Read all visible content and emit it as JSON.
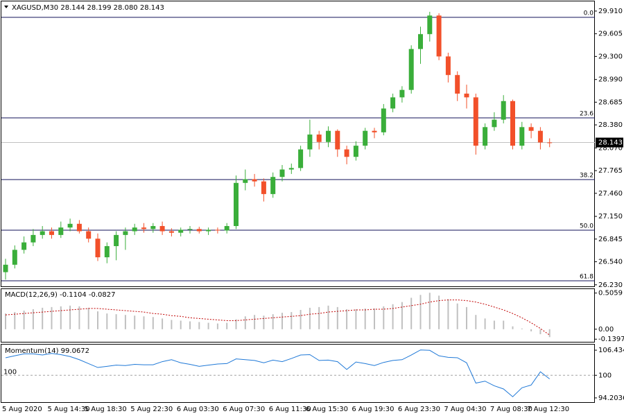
{
  "chart_data": [
    {
      "type": "candlestick",
      "title": "XAGUSD,M30  28.144 28.199 28.080 28.143",
      "categories": [
        "5 Aug 2020",
        null,
        null,
        null,
        null,
        "5 Aug 14:30",
        null,
        null,
        null,
        "5 Aug 18:30",
        null,
        null,
        null,
        null,
        "5 Aug 22:30",
        null,
        null,
        null,
        null,
        "6 Aug 03:30",
        null,
        null,
        null,
        null,
        "6 Aug 07:30",
        null,
        null,
        null,
        null,
        "6 Aug 11:30",
        null,
        null,
        null,
        "6 Aug 15:30",
        null,
        null,
        null,
        null,
        "6 Aug 19:30",
        null,
        null,
        null,
        null,
        "6 Aug 23:30",
        null,
        null,
        null,
        null,
        "7 Aug 04:30",
        null,
        null,
        null,
        null,
        "7 Aug 08:30",
        null,
        null,
        null,
        "7 Aug 12:30",
        null,
        null
      ],
      "open": [
        26.4,
        26.5,
        26.7,
        26.8,
        26.9,
        26.95,
        26.9,
        27.0,
        27.05,
        26.95,
        26.85,
        26.6,
        26.75,
        26.9,
        26.95,
        27.0,
        26.98,
        27.02,
        26.95,
        26.93,
        26.97,
        26.98,
        26.95,
        26.97,
        26.96,
        27.02,
        27.6,
        27.65,
        27.62,
        27.45,
        27.68,
        27.78,
        27.8,
        28.05,
        28.25,
        28.15,
        28.3,
        28.05,
        27.95,
        28.1,
        28.3,
        28.28,
        28.6,
        28.75,
        28.85,
        29.4,
        29.6,
        29.85,
        29.3,
        29.05,
        28.8,
        28.75,
        28.1,
        28.35,
        28.45,
        28.7,
        28.1,
        28.35,
        28.3,
        28.144
      ],
      "high": [
        26.58,
        26.76,
        26.88,
        26.98,
        27.02,
        27.0,
        27.08,
        27.12,
        27.1,
        27.0,
        26.92,
        26.8,
        26.95,
        27.0,
        27.05,
        27.06,
        27.06,
        27.08,
        26.99,
        27.0,
        27.02,
        27.01,
        27.0,
        27.0,
        27.06,
        27.7,
        27.78,
        27.72,
        27.66,
        27.74,
        27.84,
        27.86,
        28.1,
        28.45,
        28.3,
        28.36,
        28.32,
        28.1,
        28.16,
        28.34,
        28.34,
        28.66,
        28.8,
        28.9,
        29.45,
        29.7,
        29.9,
        29.88,
        29.35,
        29.1,
        28.92,
        28.8,
        28.4,
        28.55,
        28.78,
        28.72,
        28.42,
        28.4,
        28.35,
        28.199
      ],
      "low": [
        26.3,
        26.45,
        26.65,
        26.75,
        26.85,
        26.85,
        26.86,
        26.95,
        26.92,
        26.8,
        26.55,
        26.52,
        26.56,
        26.7,
        26.9,
        26.93,
        26.93,
        26.9,
        26.88,
        26.88,
        26.92,
        26.92,
        26.9,
        26.92,
        26.92,
        26.98,
        27.5,
        27.55,
        27.35,
        27.4,
        27.62,
        27.72,
        27.76,
        27.95,
        28.05,
        28.08,
        27.95,
        27.85,
        27.9,
        28.05,
        28.2,
        28.24,
        28.55,
        28.68,
        28.8,
        29.2,
        29.5,
        29.25,
        28.95,
        28.7,
        28.6,
        27.98,
        28.05,
        28.3,
        28.4,
        28.05,
        28.05,
        28.2,
        28.05,
        28.08
      ],
      "close": [
        26.5,
        26.7,
        26.8,
        26.9,
        26.95,
        26.9,
        27.0,
        27.05,
        26.95,
        26.85,
        26.6,
        26.75,
        26.9,
        26.95,
        27.0,
        26.98,
        27.02,
        26.95,
        26.93,
        26.97,
        26.98,
        26.95,
        26.97,
        26.96,
        27.02,
        27.6,
        27.65,
        27.62,
        27.45,
        27.68,
        27.78,
        27.8,
        28.05,
        28.25,
        28.15,
        28.3,
        28.05,
        27.95,
        28.1,
        28.3,
        28.28,
        28.6,
        28.75,
        28.85,
        29.4,
        29.6,
        29.85,
        29.3,
        29.05,
        28.8,
        28.75,
        28.1,
        28.35,
        28.45,
        28.7,
        28.1,
        28.35,
        28.3,
        28.144,
        28.143
      ],
      "up_color": "#3aae3a",
      "down_color": "#f2502a",
      "ylim": [
        26.2,
        30.04
      ],
      "yticks": [
        {
          "value": 29.91,
          "label": "29.910"
        },
        29.605,
        {
          "value": 29.3,
          "label": "29.300"
        },
        {
          "value": 28.99,
          "label": "28.990"
        },
        28.685,
        {
          "value": 28.38,
          "label": "28.380"
        },
        {
          "value": 28.07,
          "label": "28.070"
        },
        27.765,
        {
          "value": 27.46,
          "label": "27.460"
        },
        {
          "value": 27.15,
          "label": "27.150"
        },
        26.845,
        {
          "value": 26.54,
          "label": "26.540"
        },
        {
          "value": 26.23,
          "label": "26.230"
        }
      ],
      "fibo": [
        {
          "label": "0.0",
          "price": 29.826
        },
        {
          "label": "23.6",
          "price": 28.474
        },
        {
          "label": "38.2",
          "price": 27.645
        },
        {
          "label": "50.0",
          "price": 26.964
        },
        {
          "label": "61.8",
          "price": 26.284
        }
      ],
      "fibo_color": "#10105a"
    },
    {
      "type": "macd",
      "title": "MACD(12,26,9) -0.1104 -0.0827",
      "series": [
        {
          "color": "#c0c0c0",
          "style": "histogram",
          "values": [
            0.22,
            0.24,
            0.26,
            0.28,
            0.3,
            0.31,
            0.32,
            0.33,
            0.32,
            0.3,
            0.25,
            0.22,
            0.21,
            0.2,
            0.19,
            0.18,
            0.17,
            0.15,
            0.13,
            0.12,
            0.11,
            0.1,
            0.09,
            0.08,
            0.09,
            0.14,
            0.18,
            0.2,
            0.19,
            0.21,
            0.23,
            0.24,
            0.27,
            0.3,
            0.31,
            0.33,
            0.31,
            0.28,
            0.28,
            0.29,
            0.29,
            0.32,
            0.35,
            0.38,
            0.44,
            0.48,
            0.51,
            0.47,
            0.42,
            0.36,
            0.31,
            0.2,
            0.15,
            0.12,
            0.12,
            0.04,
            0.01,
            -0.03,
            -0.07,
            -0.1104
          ]
        },
        {
          "color": "#c00000",
          "style": "dotted",
          "values": [
            0.2,
            0.21,
            0.22,
            0.23,
            0.24,
            0.25,
            0.26,
            0.27,
            0.28,
            0.29,
            0.29,
            0.28,
            0.27,
            0.26,
            0.25,
            0.24,
            0.22,
            0.21,
            0.19,
            0.18,
            0.16,
            0.15,
            0.14,
            0.13,
            0.12,
            0.12,
            0.13,
            0.14,
            0.15,
            0.16,
            0.17,
            0.18,
            0.19,
            0.21,
            0.22,
            0.24,
            0.25,
            0.26,
            0.27,
            0.27,
            0.28,
            0.28,
            0.29,
            0.31,
            0.33,
            0.35,
            0.38,
            0.4,
            0.41,
            0.41,
            0.4,
            0.38,
            0.35,
            0.31,
            0.27,
            0.22,
            0.16,
            0.09,
            0.01,
            -0.0827
          ]
        }
      ],
      "ylim": [
        -0.186,
        0.561
      ],
      "yticks": [
        0.5059,
        {
          "value": 0,
          "label": "0.00"
        },
        -0.1397
      ]
    },
    {
      "type": "line",
      "title": "Momentum(14) 99.0672",
      "series": [
        {
          "color": "#1e78d7",
          "values": [
            104.5,
            105.0,
            105.5,
            105.5,
            105.2,
            105.6,
            105.3,
            104.8,
            104.0,
            103.0,
            102.0,
            102.3,
            102.6,
            102.5,
            102.8,
            102.7,
            102.7,
            103.5,
            104.0,
            103.2,
            102.8,
            102.3,
            102.6,
            102.9,
            103.0,
            104.2,
            104.0,
            103.8,
            103.2,
            103.9,
            103.5,
            104.3,
            105.2,
            105.3,
            103.8,
            103.9,
            103.5,
            101.5,
            103.4,
            103.0,
            102.5,
            103.3,
            103.8,
            104.0,
            105.2,
            106.5,
            106.4,
            105.0,
            104.6,
            104.5,
            103.2,
            98.0,
            98.5,
            97.3,
            96.5,
            94.5,
            96.8,
            97.5,
            100.9,
            99.0672
          ]
        }
      ],
      "level": 100,
      "ylim": [
        92.94,
        107.87
      ],
      "yticks": [
        106.4345,
        100,
        94.2036
      ]
    }
  ]
}
